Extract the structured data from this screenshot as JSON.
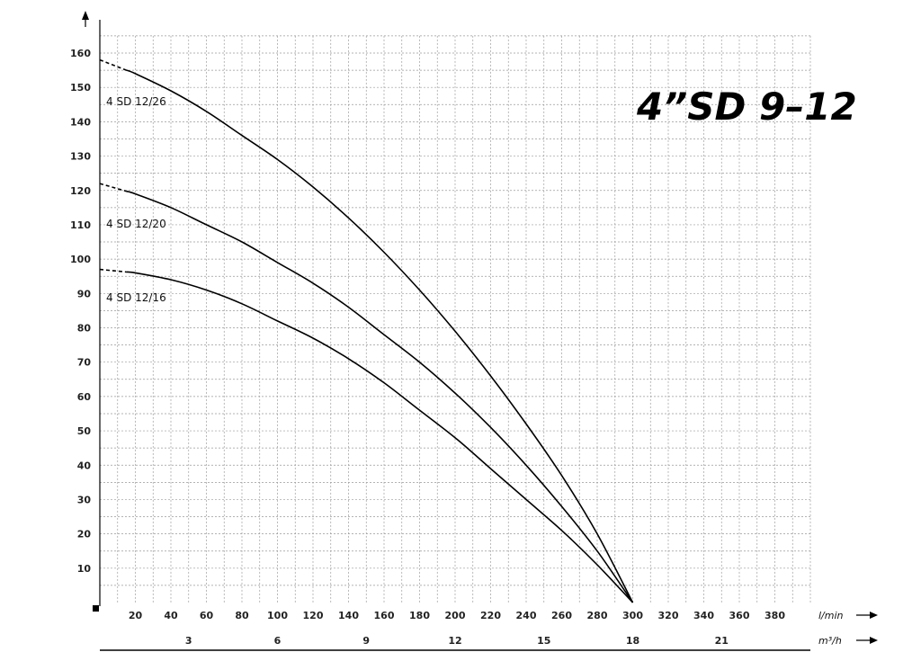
{
  "chart_data": {
    "type": "line",
    "title": "4”SD  9–12",
    "x_unit": "l/min",
    "x2_unit": "m³/h",
    "xlim": [
      0,
      400
    ],
    "ylim": [
      0,
      165
    ],
    "x_ticks": [
      20,
      40,
      60,
      80,
      100,
      120,
      140,
      160,
      180,
      200,
      220,
      240,
      260,
      280,
      300,
      320,
      340,
      360,
      380
    ],
    "y_ticks": [
      10,
      20,
      30,
      40,
      50,
      60,
      70,
      80,
      90,
      100,
      110,
      120,
      130,
      140,
      150,
      160
    ],
    "x2_ticks": [
      3,
      6,
      9,
      12,
      15,
      18,
      21
    ],
    "grid": true,
    "series": [
      {
        "name": "4 SD 12/26",
        "x": [
          0,
          20,
          40,
          60,
          80,
          100,
          120,
          140,
          160,
          180,
          200,
          220,
          240,
          260,
          280,
          300
        ],
        "y": [
          158,
          154,
          149,
          143,
          136,
          129,
          121,
          112,
          102,
          91,
          79,
          66,
          52,
          37,
          20,
          0
        ]
      },
      {
        "name": "4 SD 12/20",
        "x": [
          0,
          20,
          40,
          60,
          80,
          100,
          120,
          140,
          160,
          180,
          200,
          220,
          240,
          260,
          280,
          300
        ],
        "y": [
          122,
          119,
          115,
          110,
          105,
          99,
          93,
          86,
          78,
          70,
          61,
          51,
          40,
          28,
          15,
          0
        ]
      },
      {
        "name": "4 SD 12/16",
        "x": [
          0,
          20,
          40,
          60,
          80,
          100,
          120,
          140,
          160,
          180,
          200,
          220,
          240,
          260,
          280,
          300
        ],
        "y": [
          97,
          96,
          94,
          91,
          87,
          82,
          77,
          71,
          64,
          56,
          48,
          39,
          30,
          21,
          11,
          0
        ]
      }
    ]
  }
}
